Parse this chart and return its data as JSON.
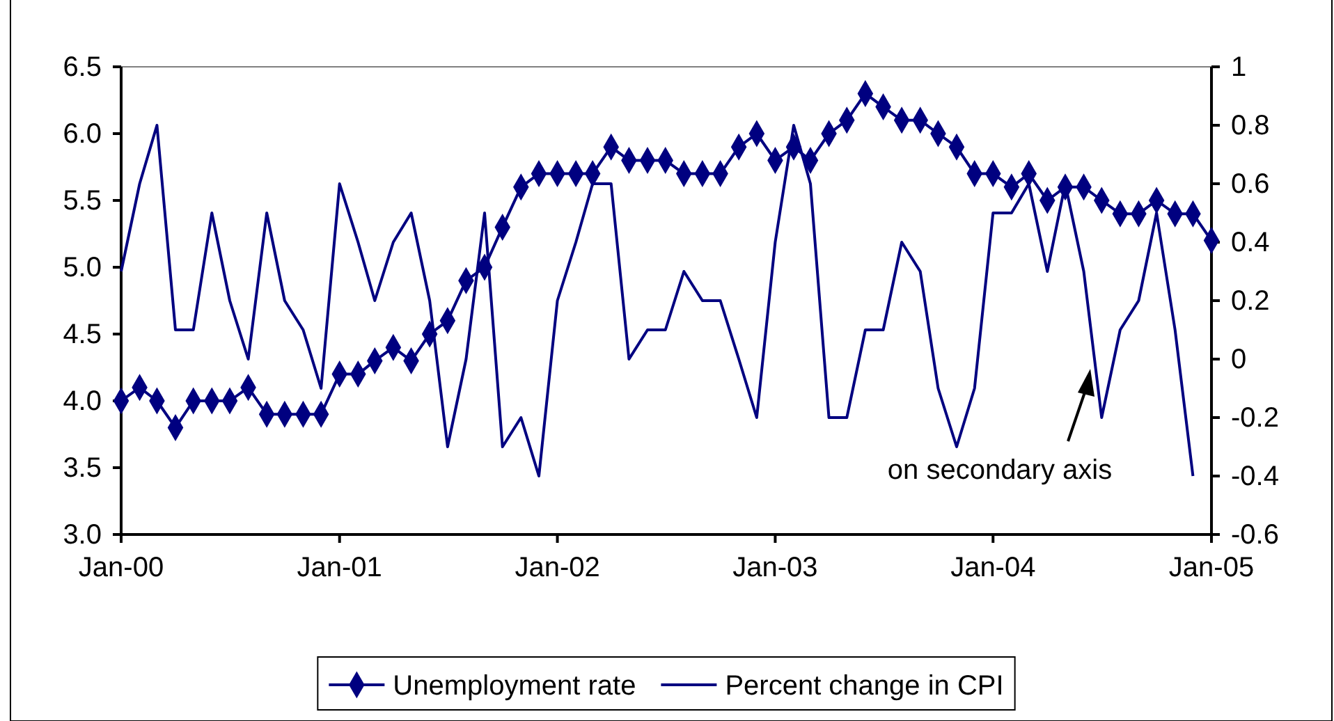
{
  "chart_data": {
    "type": "line",
    "x": [
      "2000-01",
      "2000-02",
      "2000-03",
      "2000-04",
      "2000-05",
      "2000-06",
      "2000-07",
      "2000-08",
      "2000-09",
      "2000-10",
      "2000-11",
      "2000-12",
      "2001-01",
      "2001-02",
      "2001-03",
      "2001-04",
      "2001-05",
      "2001-06",
      "2001-07",
      "2001-08",
      "2001-09",
      "2001-10",
      "2001-11",
      "2001-12",
      "2002-01",
      "2002-02",
      "2002-03",
      "2002-04",
      "2002-05",
      "2002-06",
      "2002-07",
      "2002-08",
      "2002-09",
      "2002-10",
      "2002-11",
      "2002-12",
      "2003-01",
      "2003-02",
      "2003-03",
      "2003-04",
      "2003-05",
      "2003-06",
      "2003-07",
      "2003-08",
      "2003-09",
      "2003-10",
      "2003-11",
      "2003-12",
      "2004-01",
      "2004-02",
      "2004-03",
      "2004-04",
      "2004-05",
      "2004-06",
      "2004-07",
      "2004-08",
      "2004-09",
      "2004-10",
      "2004-11",
      "2004-12",
      "2005-01"
    ],
    "series": [
      {
        "name": "Unemployment rate",
        "color": "#000080",
        "marker": "diamond",
        "values": [
          4.0,
          4.1,
          4.0,
          3.8,
          4.0,
          4.0,
          4.0,
          4.1,
          3.9,
          3.9,
          3.9,
          3.9,
          4.2,
          4.2,
          4.3,
          4.4,
          4.3,
          4.5,
          4.6,
          4.9,
          5.0,
          5.3,
          5.6,
          5.7,
          5.7,
          5.7,
          5.7,
          5.9,
          5.8,
          5.8,
          5.8,
          5.7,
          5.7,
          5.7,
          5.9,
          6.0,
          5.8,
          5.9,
          5.8,
          6.0,
          6.1,
          6.3,
          6.2,
          6.1,
          6.1,
          6.0,
          5.9,
          5.7,
          5.7,
          5.6,
          5.7,
          5.5,
          5.6,
          5.6,
          5.5,
          5.4,
          5.4,
          5.5,
          5.4,
          5.4,
          5.2
        ]
      },
      {
        "name": "Percent change in CPI",
        "color": "#000080",
        "marker": "none",
        "axis": "y2",
        "values": [
          0.3,
          0.6,
          0.8,
          0.1,
          0.1,
          0.5,
          0.2,
          0.0,
          0.5,
          0.2,
          0.1,
          -0.1,
          0.6,
          0.4,
          0.2,
          0.4,
          0.5,
          0.2,
          -0.3,
          0.0,
          0.5,
          -0.3,
          -0.2,
          -0.4,
          0.2,
          0.4,
          0.6,
          0.6,
          0.0,
          0.1,
          0.1,
          0.3,
          0.2,
          0.2,
          0.0,
          -0.2,
          0.4,
          0.8,
          0.6,
          -0.2,
          -0.2,
          0.1,
          0.1,
          0.4,
          0.3,
          -0.1,
          -0.3,
          -0.1,
          0.5,
          0.5,
          0.6,
          0.3,
          0.6,
          0.3,
          -0.2,
          0.1,
          0.2,
          0.5,
          0.1,
          -0.4,
          null
        ]
      }
    ],
    "xlim": [
      "2000-01",
      "2005-01"
    ],
    "xticks": [
      {
        "value": "2000-01",
        "label": "Jan-00"
      },
      {
        "value": "2001-01",
        "label": "Jan-01"
      },
      {
        "value": "2002-01",
        "label": "Jan-02"
      },
      {
        "value": "2003-01",
        "label": "Jan-03"
      },
      {
        "value": "2004-01",
        "label": "Jan-04"
      },
      {
        "value": "2005-01",
        "label": "Jan-05"
      }
    ],
    "ylim": [
      3.0,
      6.5
    ],
    "yticks": [
      {
        "value": 3,
        "label": "3.0"
      },
      3.5,
      {
        "value": 4,
        "label": "4.0"
      },
      4.5,
      {
        "value": 5,
        "label": "5.0"
      },
      5.5,
      {
        "value": 6,
        "label": "6.0"
      },
      6.5
    ],
    "y2lim": [
      -0.6,
      1
    ],
    "y2ticks": [
      -0.6,
      -0.4,
      -0.2,
      0,
      0.2,
      0.4,
      0.6,
      0.8,
      1
    ],
    "grid": false,
    "legend": "bottom",
    "line_style": "solid",
    "annotations": [
      "on secondary axis"
    ]
  }
}
